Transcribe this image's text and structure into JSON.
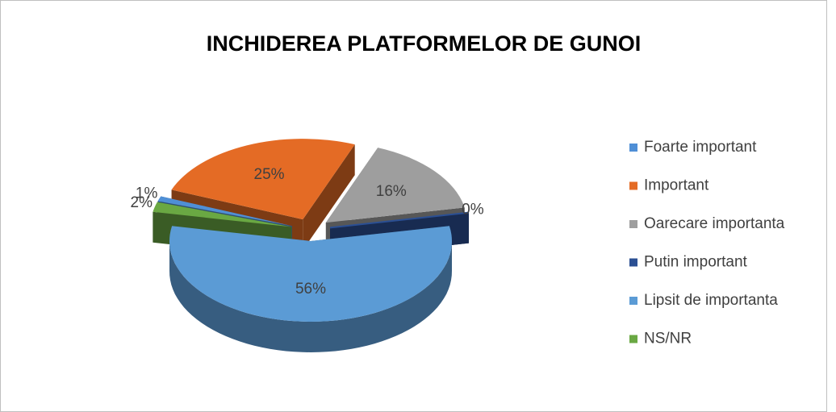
{
  "chart_data": {
    "type": "pie",
    "title": "INCHIDEREA PLATFORMELOR DE GUNOI",
    "categories": [
      "Foarte important",
      "Important",
      "Oarecare importanta",
      "Putin important",
      "Lipsit de importanta",
      "NS/NR"
    ],
    "values": [
      1,
      25,
      16,
      0,
      56,
      2
    ],
    "value_labels": [
      "1%",
      "25%",
      "16%",
      "0%",
      "56%",
      "2%"
    ],
    "colors": [
      "#4f8fd6",
      "#e46b25",
      "#9e9e9e",
      "#2b4f93",
      "#5b9bd5",
      "#6aa843"
    ],
    "legend": "right"
  }
}
